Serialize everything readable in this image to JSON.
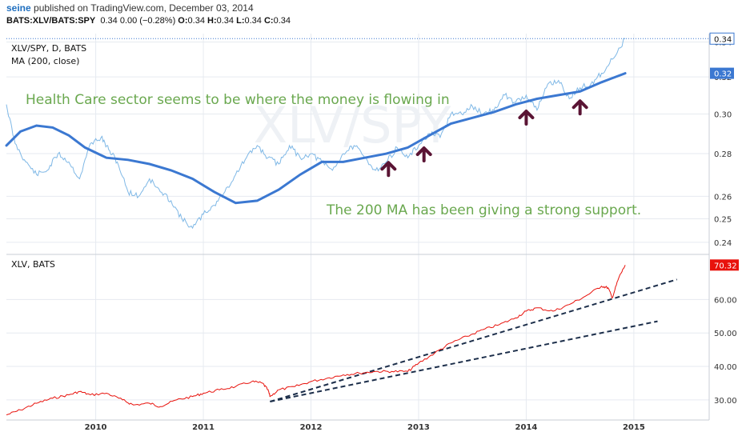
{
  "header": {
    "user": "seine",
    "published": "published on TradingView.com, December 03, 2014",
    "symbol": "BATS:XLV/BATS:SPY",
    "quote": "0.34 0.00 (−0.28%)",
    "o_label": "O:",
    "o_value": "0.34",
    "h_label": "H:",
    "h_value": "0.34",
    "l_label": "L:",
    "l_value": "0.34",
    "c_label": "C:",
    "c_value": "0.34"
  },
  "colors": {
    "ratio": "#7fb8e6",
    "ma": "#3b78d1",
    "price": "#e8120c",
    "trend": "#1c2e4a",
    "annotation": "#6aa84f",
    "arrow": "#5a1434"
  },
  "chart_data": [
    {
      "type": "line",
      "watermark": "XLV/SPY",
      "legend": [
        "XLV/SPY, D, BATS",
        "MA (200, close)"
      ],
      "y_ticks": [
        "0.24",
        "0.25",
        "0.26",
        "0.28",
        "0.30",
        "0.32",
        "0.34"
      ],
      "ylim": [
        0.235,
        0.345
      ],
      "y_scale": "log",
      "last_price_label": "0.34",
      "ma_label": "0.32",
      "annotations": [
        "Health Care sector seems to be where the money is flowing in",
        "The 200 MA has been giving a strong support."
      ],
      "support_arrows_x": [
        2012.72,
        2013.05,
        2014.0,
        2014.5
      ],
      "series": [
        {
          "name": "XLV/SPY",
          "x": [
            2009.17,
            2009.25,
            2009.35,
            2009.45,
            2009.55,
            2009.65,
            2009.75,
            2009.85,
            2009.95,
            2010.05,
            2010.12,
            2010.2,
            2010.3,
            2010.4,
            2010.5,
            2010.6,
            2010.7,
            2010.8,
            2010.9,
            2011.0,
            2011.1,
            2011.2,
            2011.3,
            2011.4,
            2011.5,
            2011.6,
            2011.7,
            2011.8,
            2011.9,
            2012.0,
            2012.1,
            2012.2,
            2012.3,
            2012.4,
            2012.5,
            2012.6,
            2012.7,
            2012.8,
            2012.9,
            2013.0,
            2013.1,
            2013.2,
            2013.3,
            2013.4,
            2013.5,
            2013.6,
            2013.7,
            2013.8,
            2013.9,
            2014.0,
            2014.1,
            2014.2,
            2014.3,
            2014.4,
            2014.5,
            2014.6,
            2014.7,
            2014.8,
            2014.92
          ],
          "values": [
            0.305,
            0.285,
            0.276,
            0.27,
            0.272,
            0.28,
            0.276,
            0.268,
            0.285,
            0.288,
            0.282,
            0.276,
            0.262,
            0.26,
            0.268,
            0.262,
            0.258,
            0.25,
            0.246,
            0.252,
            0.256,
            0.262,
            0.27,
            0.278,
            0.284,
            0.278,
            0.275,
            0.284,
            0.278,
            0.28,
            0.276,
            0.272,
            0.28,
            0.284,
            0.278,
            0.272,
            0.276,
            0.283,
            0.278,
            0.284,
            0.29,
            0.288,
            0.3,
            0.3,
            0.304,
            0.3,
            0.302,
            0.31,
            0.306,
            0.31,
            0.302,
            0.316,
            0.318,
            0.308,
            0.314,
            0.316,
            0.322,
            0.33,
            0.342
          ]
        },
        {
          "name": "MA (200, close)",
          "x": [
            2009.17,
            2009.3,
            2009.45,
            2009.6,
            2009.75,
            2009.9,
            2010.1,
            2010.3,
            2010.5,
            2010.7,
            2010.9,
            2011.1,
            2011.3,
            2011.5,
            2011.7,
            2011.9,
            2012.1,
            2012.3,
            2012.5,
            2012.7,
            2012.9,
            2013.1,
            2013.3,
            2013.5,
            2013.7,
            2013.9,
            2014.1,
            2014.3,
            2014.5,
            2014.7,
            2014.92
          ],
          "values": [
            0.284,
            0.291,
            0.294,
            0.293,
            0.289,
            0.283,
            0.278,
            0.277,
            0.275,
            0.272,
            0.268,
            0.262,
            0.257,
            0.258,
            0.263,
            0.27,
            0.276,
            0.276,
            0.278,
            0.28,
            0.283,
            0.289,
            0.295,
            0.298,
            0.301,
            0.305,
            0.308,
            0.31,
            0.312,
            0.317,
            0.322
          ]
        }
      ]
    },
    {
      "type": "line",
      "legend": [
        "XLV, BATS"
      ],
      "y_ticks": [
        "30.00",
        "40.00",
        "50.00",
        "60.00"
      ],
      "ylim": [
        24,
        73
      ],
      "last_price_label": "70.32",
      "x_ticks": [
        "2010",
        "2011",
        "2012",
        "2013",
        "2014",
        "2015"
      ],
      "series": [
        {
          "name": "XLV",
          "x": [
            2009.17,
            2009.3,
            2009.45,
            2009.6,
            2009.75,
            2009.85,
            2009.95,
            2010.1,
            2010.25,
            2010.35,
            2010.5,
            2010.6,
            2010.75,
            2010.9,
            2011.0,
            2011.15,
            2011.3,
            2011.45,
            2011.55,
            2011.6,
            2011.62,
            2011.7,
            2011.85,
            2012.0,
            2012.15,
            2012.3,
            2012.45,
            2012.6,
            2012.75,
            2012.9,
            2013.0,
            2013.15,
            2013.3,
            2013.45,
            2013.6,
            2013.75,
            2013.9,
            2014.0,
            2014.1,
            2014.25,
            2014.4,
            2014.55,
            2014.7,
            2014.76,
            2014.8,
            2014.86,
            2014.92
          ],
          "values": [
            25.5,
            27.0,
            29.0,
            30.5,
            31.5,
            32.5,
            31.5,
            32.0,
            30.0,
            28.5,
            29.0,
            28.0,
            30.0,
            31.0,
            32.0,
            33.0,
            34.0,
            35.5,
            35.0,
            33.0,
            31.0,
            33.0,
            34.0,
            35.5,
            36.5,
            37.5,
            38.0,
            38.5,
            38.5,
            38.5,
            41.0,
            44.0,
            47.0,
            49.0,
            51.0,
            52.5,
            54.5,
            56.5,
            57.5,
            56.5,
            58.5,
            61.0,
            64.0,
            63.5,
            60.5,
            66.5,
            70.3
          ]
        },
        {
          "name": "Trend 1",
          "x": [
            2011.62,
            2015.4
          ],
          "values": [
            29.5,
            66.0
          ]
        },
        {
          "name": "Trend 2",
          "x": [
            2011.62,
            2015.22
          ],
          "values": [
            29.5,
            53.5
          ]
        }
      ]
    }
  ]
}
